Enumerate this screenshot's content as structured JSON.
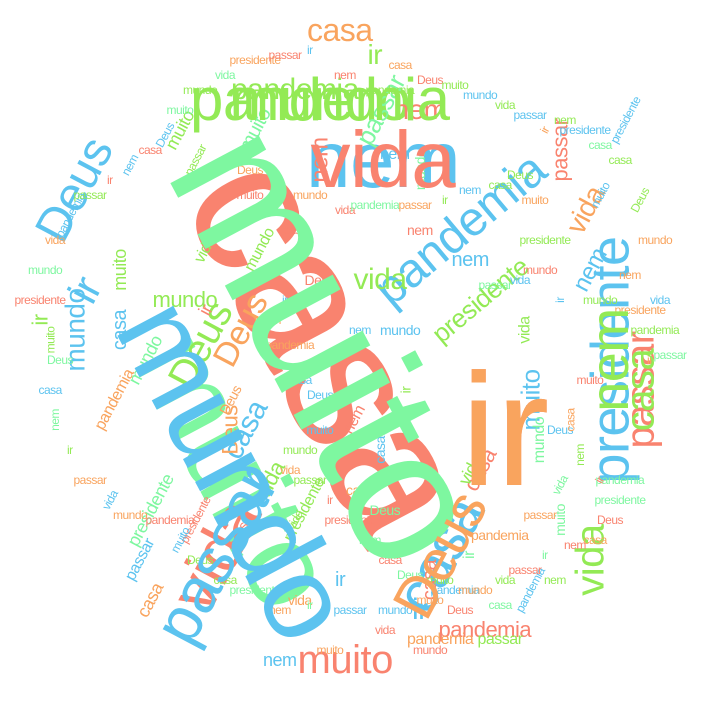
{
  "colors": {
    "salmon": "#f9836f",
    "green": "#93ea55",
    "mint": "#7ef7a0",
    "blue": "#5cc3ef",
    "orange": "#f9a45e",
    "background": "#ffffff"
  },
  "words": [
    {
      "text": "casa",
      "color": "salmon"
    },
    {
      "text": "muito",
      "color": "mint"
    },
    {
      "text": "nem",
      "color": "blue"
    },
    {
      "text": "mundo",
      "color": "green"
    },
    {
      "text": "vida",
      "color": "salmon"
    },
    {
      "text": "ir",
      "color": "salmon"
    },
    {
      "text": "presidente",
      "color": "blue"
    },
    {
      "text": "passar",
      "color": "salmon"
    },
    {
      "text": "casa",
      "color": "blue"
    },
    {
      "text": "Deus",
      "color": "blue"
    },
    {
      "text": "vida",
      "color": "green"
    },
    {
      "text": "pandemia",
      "color": "blue"
    },
    {
      "text": "muito",
      "color": "salmon"
    },
    {
      "text": "Deus",
      "color": "green"
    },
    {
      "text": "casa",
      "color": "orange"
    },
    {
      "text": "mundo",
      "color": "blue"
    },
    {
      "text": "Deus",
      "color": "orange"
    },
    {
      "text": "vida",
      "color": "green"
    },
    {
      "text": "nem",
      "color": "salmon"
    },
    {
      "text": "ir",
      "color": "green"
    },
    {
      "text": "muito",
      "color": "blue"
    },
    {
      "text": "pandemia",
      "color": "green"
    },
    {
      "text": "vida",
      "color": "orange"
    },
    {
      "text": "casa",
      "color": "blue"
    },
    {
      "text": "ir",
      "color": "blue"
    },
    {
      "text": "presidente",
      "color": "green"
    },
    {
      "text": "mundo",
      "color": "green"
    },
    {
      "text": "pandemia",
      "color": "salmon"
    },
    {
      "text": "passar",
      "color": "salmon"
    },
    {
      "text": "nem",
      "color": "blue"
    },
    {
      "text": "casa",
      "color": "salmon"
    },
    {
      "text": "ir",
      "color": "green"
    },
    {
      "text": "mundo",
      "color": "mint"
    },
    {
      "text": "passar",
      "color": "mint"
    },
    {
      "text": "ir",
      "color": "blue"
    },
    {
      "text": "vida",
      "color": "green"
    },
    {
      "text": "nem",
      "color": "salmon"
    },
    {
      "text": "Deus",
      "color": "orange"
    },
    {
      "text": "muito",
      "color": "mint"
    },
    {
      "text": "casa",
      "color": "blue"
    },
    {
      "text": "presidente",
      "color": "mint"
    },
    {
      "text": "pandemia",
      "color": "orange"
    },
    {
      "text": "nem",
      "color": "blue"
    },
    {
      "text": "mundo",
      "color": "green"
    },
    {
      "text": "nem",
      "color": "blue"
    },
    {
      "text": "ir",
      "color": "blue"
    },
    {
      "text": "muito",
      "color": "green"
    },
    {
      "text": "pandemia",
      "color": "orange"
    },
    {
      "text": "vida",
      "color": "green"
    },
    {
      "text": "passar",
      "color": "green"
    },
    {
      "text": "casa",
      "color": "salmon"
    },
    {
      "text": "casa",
      "color": "orange"
    },
    {
      "text": "mundo",
      "color": "mint"
    },
    {
      "text": "nem",
      "color": "blue"
    },
    {
      "text": "ir",
      "color": "salmon"
    },
    {
      "text": "vida",
      "color": "green"
    },
    {
      "text": "Deus",
      "color": "salmon"
    },
    {
      "text": "muito",
      "color": "green"
    },
    {
      "text": "presidente",
      "color": "green"
    },
    {
      "text": "passar",
      "color": "blue"
    },
    {
      "text": "nem",
      "color": "salmon"
    },
    {
      "text": "mundo",
      "color": "mint"
    },
    {
      "text": "casa",
      "color": "blue"
    },
    {
      "text": "pandemia",
      "color": "orange"
    },
    {
      "text": "ir",
      "color": "mint"
    },
    {
      "text": "vida",
      "color": "green"
    },
    {
      "text": "Deus",
      "color": "orange"
    },
    {
      "text": "muito",
      "color": "mint"
    },
    {
      "text": "nem",
      "color": "salmon"
    },
    {
      "text": "passar",
      "color": "salmon"
    },
    {
      "text": "casa",
      "color": "orange"
    },
    {
      "text": "mundo",
      "color": "blue"
    },
    {
      "text": "presidente",
      "color": "salmon"
    },
    {
      "text": "vida",
      "color": "orange"
    },
    {
      "text": "ir",
      "color": "green"
    },
    {
      "text": "Deus",
      "color": "mint"
    },
    {
      "text": "nem",
      "color": "blue"
    },
    {
      "text": "pandemia",
      "color": "mint"
    },
    {
      "text": "muito",
      "color": "orange"
    },
    {
      "text": "casa",
      "color": "salmon"
    },
    {
      "text": "mundo",
      "color": "salmon"
    },
    {
      "text": "passar",
      "color": "green"
    },
    {
      "text": "vida",
      "color": "green"
    },
    {
      "text": "ir",
      "color": "blue"
    },
    {
      "text": "Deus",
      "color": "green"
    },
    {
      "text": "nem",
      "color": "orange"
    },
    {
      "text": "presidente",
      "color": "blue"
    },
    {
      "text": "casa",
      "color": "green"
    },
    {
      "text": "muito",
      "color": "blue"
    },
    {
      "text": "mundo",
      "color": "orange"
    },
    {
      "text": "pandemia",
      "color": "green"
    },
    {
      "text": "passar",
      "color": "orange"
    },
    {
      "text": "vida",
      "color": "mint"
    },
    {
      "text": "ir",
      "color": "salmon"
    },
    {
      "text": "nem",
      "color": "green"
    },
    {
      "text": "Deus",
      "color": "blue"
    },
    {
      "text": "casa",
      "color": "orange"
    },
    {
      "text": "muito",
      "color": "salmon"
    },
    {
      "text": "mundo",
      "color": "green"
    },
    {
      "text": "presidente",
      "color": "orange"
    },
    {
      "text": "vida",
      "color": "blue"
    },
    {
      "text": "passar",
      "color": "mint"
    },
    {
      "text": "ir",
      "color": "orange"
    },
    {
      "text": "nem",
      "color": "green"
    },
    {
      "text": "pandemia",
      "color": "blue"
    },
    {
      "text": "casa",
      "color": "mint"
    },
    {
      "text": "Deus",
      "color": "salmon"
    },
    {
      "text": "muito",
      "color": "orange"
    },
    {
      "text": "mundo",
      "color": "blue"
    },
    {
      "text": "vida",
      "color": "salmon"
    },
    {
      "text": "passar",
      "color": "blue"
    },
    {
      "text": "ir",
      "color": "mint"
    },
    {
      "text": "nem",
      "color": "orange"
    },
    {
      "text": "presidente",
      "color": "mint"
    },
    {
      "text": "casa",
      "color": "green"
    },
    {
      "text": "Deus",
      "color": "green"
    },
    {
      "text": "muito",
      "color": "blue"
    },
    {
      "text": "pandemia",
      "color": "salmon"
    },
    {
      "text": "mundo",
      "color": "orange"
    },
    {
      "text": "vida",
      "color": "blue"
    },
    {
      "text": "passar",
      "color": "orange"
    },
    {
      "text": "ir",
      "color": "green"
    },
    {
      "text": "nem",
      "color": "mint"
    },
    {
      "text": "casa",
      "color": "blue"
    },
    {
      "text": "Deus",
      "color": "mint"
    },
    {
      "text": "muito",
      "color": "green"
    },
    {
      "text": "presidente",
      "color": "salmon"
    },
    {
      "text": "mundo",
      "color": "mint"
    },
    {
      "text": "vida",
      "color": "orange"
    },
    {
      "text": "pandemia",
      "color": "blue"
    },
    {
      "text": "passar",
      "color": "green"
    },
    {
      "text": "ir",
      "color": "salmon"
    },
    {
      "text": "nem",
      "color": "blue"
    },
    {
      "text": "casa",
      "color": "salmon"
    },
    {
      "text": "Deus",
      "color": "blue"
    },
    {
      "text": "muito",
      "color": "mint"
    },
    {
      "text": "mundo",
      "color": "green"
    },
    {
      "text": "vida",
      "color": "mint"
    },
    {
      "text": "presidente",
      "color": "orange"
    },
    {
      "text": "passar",
      "color": "salmon"
    },
    {
      "text": "ir",
      "color": "blue"
    },
    {
      "text": "nem",
      "color": "salmon"
    },
    {
      "text": "pandemia",
      "color": "green"
    },
    {
      "text": "casa",
      "color": "orange"
    },
    {
      "text": "Deus",
      "color": "salmon"
    },
    {
      "text": "muito",
      "color": "green"
    },
    {
      "text": "mundo",
      "color": "blue"
    },
    {
      "text": "vida",
      "color": "green"
    },
    {
      "text": "passar",
      "color": "blue"
    },
    {
      "text": "ir",
      "color": "orange"
    },
    {
      "text": "nem",
      "color": "green"
    },
    {
      "text": "presidente",
      "color": "blue"
    },
    {
      "text": "casa",
      "color": "mint"
    },
    {
      "text": "Deus",
      "color": "orange"
    },
    {
      "text": "muito",
      "color": "salmon"
    },
    {
      "text": "mundo",
      "color": "orange"
    },
    {
      "text": "vida",
      "color": "salmon"
    },
    {
      "text": "pandemia",
      "color": "mint"
    },
    {
      "text": "passar",
      "color": "orange"
    },
    {
      "text": "ir",
      "color": "green"
    },
    {
      "text": "nem",
      "color": "blue"
    },
    {
      "text": "casa",
      "color": "green"
    },
    {
      "text": "Deus",
      "color": "green"
    },
    {
      "text": "muito",
      "color": "orange"
    },
    {
      "text": "presidente",
      "color": "green"
    },
    {
      "text": "mundo",
      "color": "salmon"
    },
    {
      "text": "vida",
      "color": "blue"
    },
    {
      "text": "passar",
      "color": "mint"
    },
    {
      "text": "ir",
      "color": "blue"
    },
    {
      "text": "nem",
      "color": "orange"
    },
    {
      "text": "pandemia",
      "color": "orange"
    },
    {
      "text": "casa",
      "color": "blue"
    },
    {
      "text": "Deus",
      "color": "blue"
    },
    {
      "text": "muito",
      "color": "blue"
    },
    {
      "text": "mundo",
      "color": "green"
    },
    {
      "text": "vida",
      "color": "orange"
    },
    {
      "text": "passar",
      "color": "green"
    },
    {
      "text": "ir",
      "color": "salmon"
    },
    {
      "text": "presidente",
      "color": "salmon"
    },
    {
      "text": "nem",
      "color": "mint"
    },
    {
      "text": "casa",
      "color": "salmon"
    },
    {
      "text": "Deus",
      "color": "mint"
    },
    {
      "text": "muito",
      "color": "green"
    },
    {
      "text": "pandemia",
      "color": "blue"
    },
    {
      "text": "mundo",
      "color": "orange"
    },
    {
      "text": "vida",
      "color": "green"
    },
    {
      "text": "passar",
      "color": "salmon"
    },
    {
      "text": "ir",
      "color": "mint"
    },
    {
      "text": "nem",
      "color": "salmon"
    },
    {
      "text": "casa",
      "color": "orange"
    },
    {
      "text": "Deus",
      "color": "salmon"
    },
    {
      "text": "presidente",
      "color": "mint"
    },
    {
      "text": "muito",
      "color": "mint"
    },
    {
      "text": "mundo",
      "color": "blue"
    },
    {
      "text": "vida",
      "color": "salmon"
    },
    {
      "text": "pandemia",
      "color": "green"
    },
    {
      "text": "passar",
      "color": "blue"
    },
    {
      "text": "ir",
      "color": "orange"
    },
    {
      "text": "nem",
      "color": "green"
    },
    {
      "text": "casa",
      "color": "green"
    },
    {
      "text": "Deus",
      "color": "orange"
    }
  ]
}
